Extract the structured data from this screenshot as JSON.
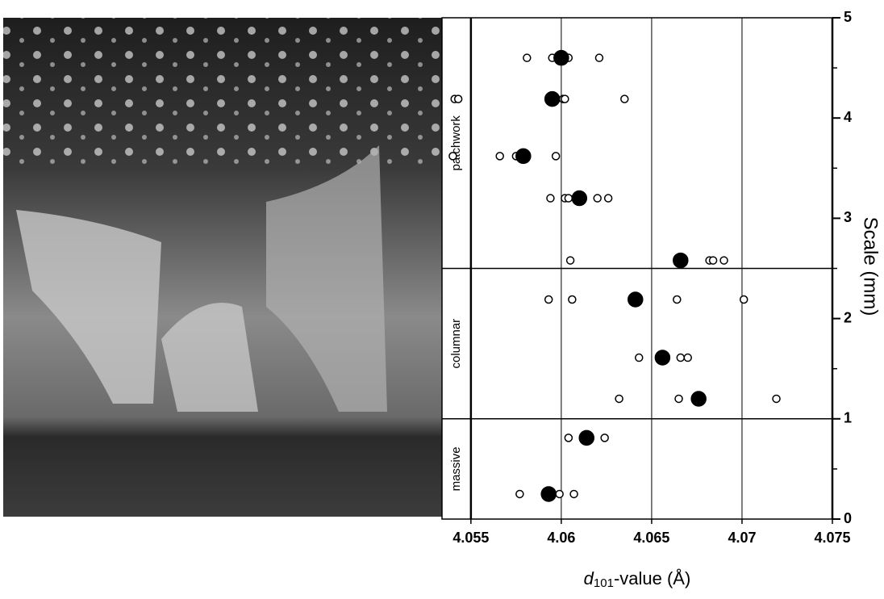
{
  "chart_data": {
    "type": "scatter",
    "xlabel": {
      "var": "d",
      "sub": "101",
      "rest": "-value (Å)"
    },
    "ylabel": "Scale (mm)",
    "xlim": [
      4.0534,
      4.075
    ],
    "xticks": [
      4.055,
      4.06,
      4.065,
      4.07,
      4.075
    ],
    "ylim": [
      0,
      5
    ],
    "yticks": [
      0,
      1,
      2,
      3,
      4,
      5
    ],
    "yminorticks": [
      0.5,
      1.5,
      2.5,
      3.5,
      4.5
    ],
    "grid": true,
    "regions": [
      {
        "label": "massive",
        "from": 0,
        "to": 1
      },
      {
        "label": "columnar",
        "from": 1,
        "to": 2.5
      },
      {
        "label": "patchwork",
        "from": 2.5,
        "to": 5
      }
    ],
    "series": [
      {
        "marker": "open",
        "color": "#000000",
        "x": [
          4.0581,
          4.0595,
          4.0598,
          4.0601,
          4.0604,
          4.0621,
          4.0541,
          4.0543,
          4.0601,
          4.0602,
          4.0635,
          4.054,
          4.0566,
          4.0575,
          4.0578,
          4.0597,
          4.0594,
          4.0602,
          4.0604,
          4.062,
          4.0626,
          4.0605,
          4.0682,
          4.0684,
          4.069,
          4.0593,
          4.0606,
          4.0664,
          4.0701,
          4.0643,
          4.0666,
          4.067,
          4.0632,
          4.0665,
          4.0719,
          4.0604,
          4.0624,
          4.0577,
          4.0599,
          4.0607
        ],
        "values": [
          4.6,
          4.6,
          4.6,
          4.6,
          4.6,
          4.6,
          4.19,
          4.19,
          4.19,
          4.19,
          4.19,
          3.62,
          3.62,
          3.62,
          3.62,
          3.62,
          3.2,
          3.2,
          3.2,
          3.2,
          3.2,
          2.58,
          2.58,
          2.58,
          2.58,
          2.19,
          2.19,
          2.19,
          2.19,
          1.61,
          1.61,
          1.61,
          1.2,
          1.2,
          1.2,
          0.81,
          0.81,
          0.25,
          0.25,
          0.25
        ]
      },
      {
        "marker": "filled",
        "color": "#000000",
        "x": [
          4.06,
          4.0595,
          4.0579,
          4.061,
          4.0666,
          4.0641,
          4.0656,
          4.0676,
          4.0614,
          4.0593
        ],
        "values": [
          4.6,
          4.19,
          3.62,
          3.2,
          2.58,
          2.19,
          1.61,
          1.2,
          0.81,
          0.25
        ]
      }
    ]
  }
}
